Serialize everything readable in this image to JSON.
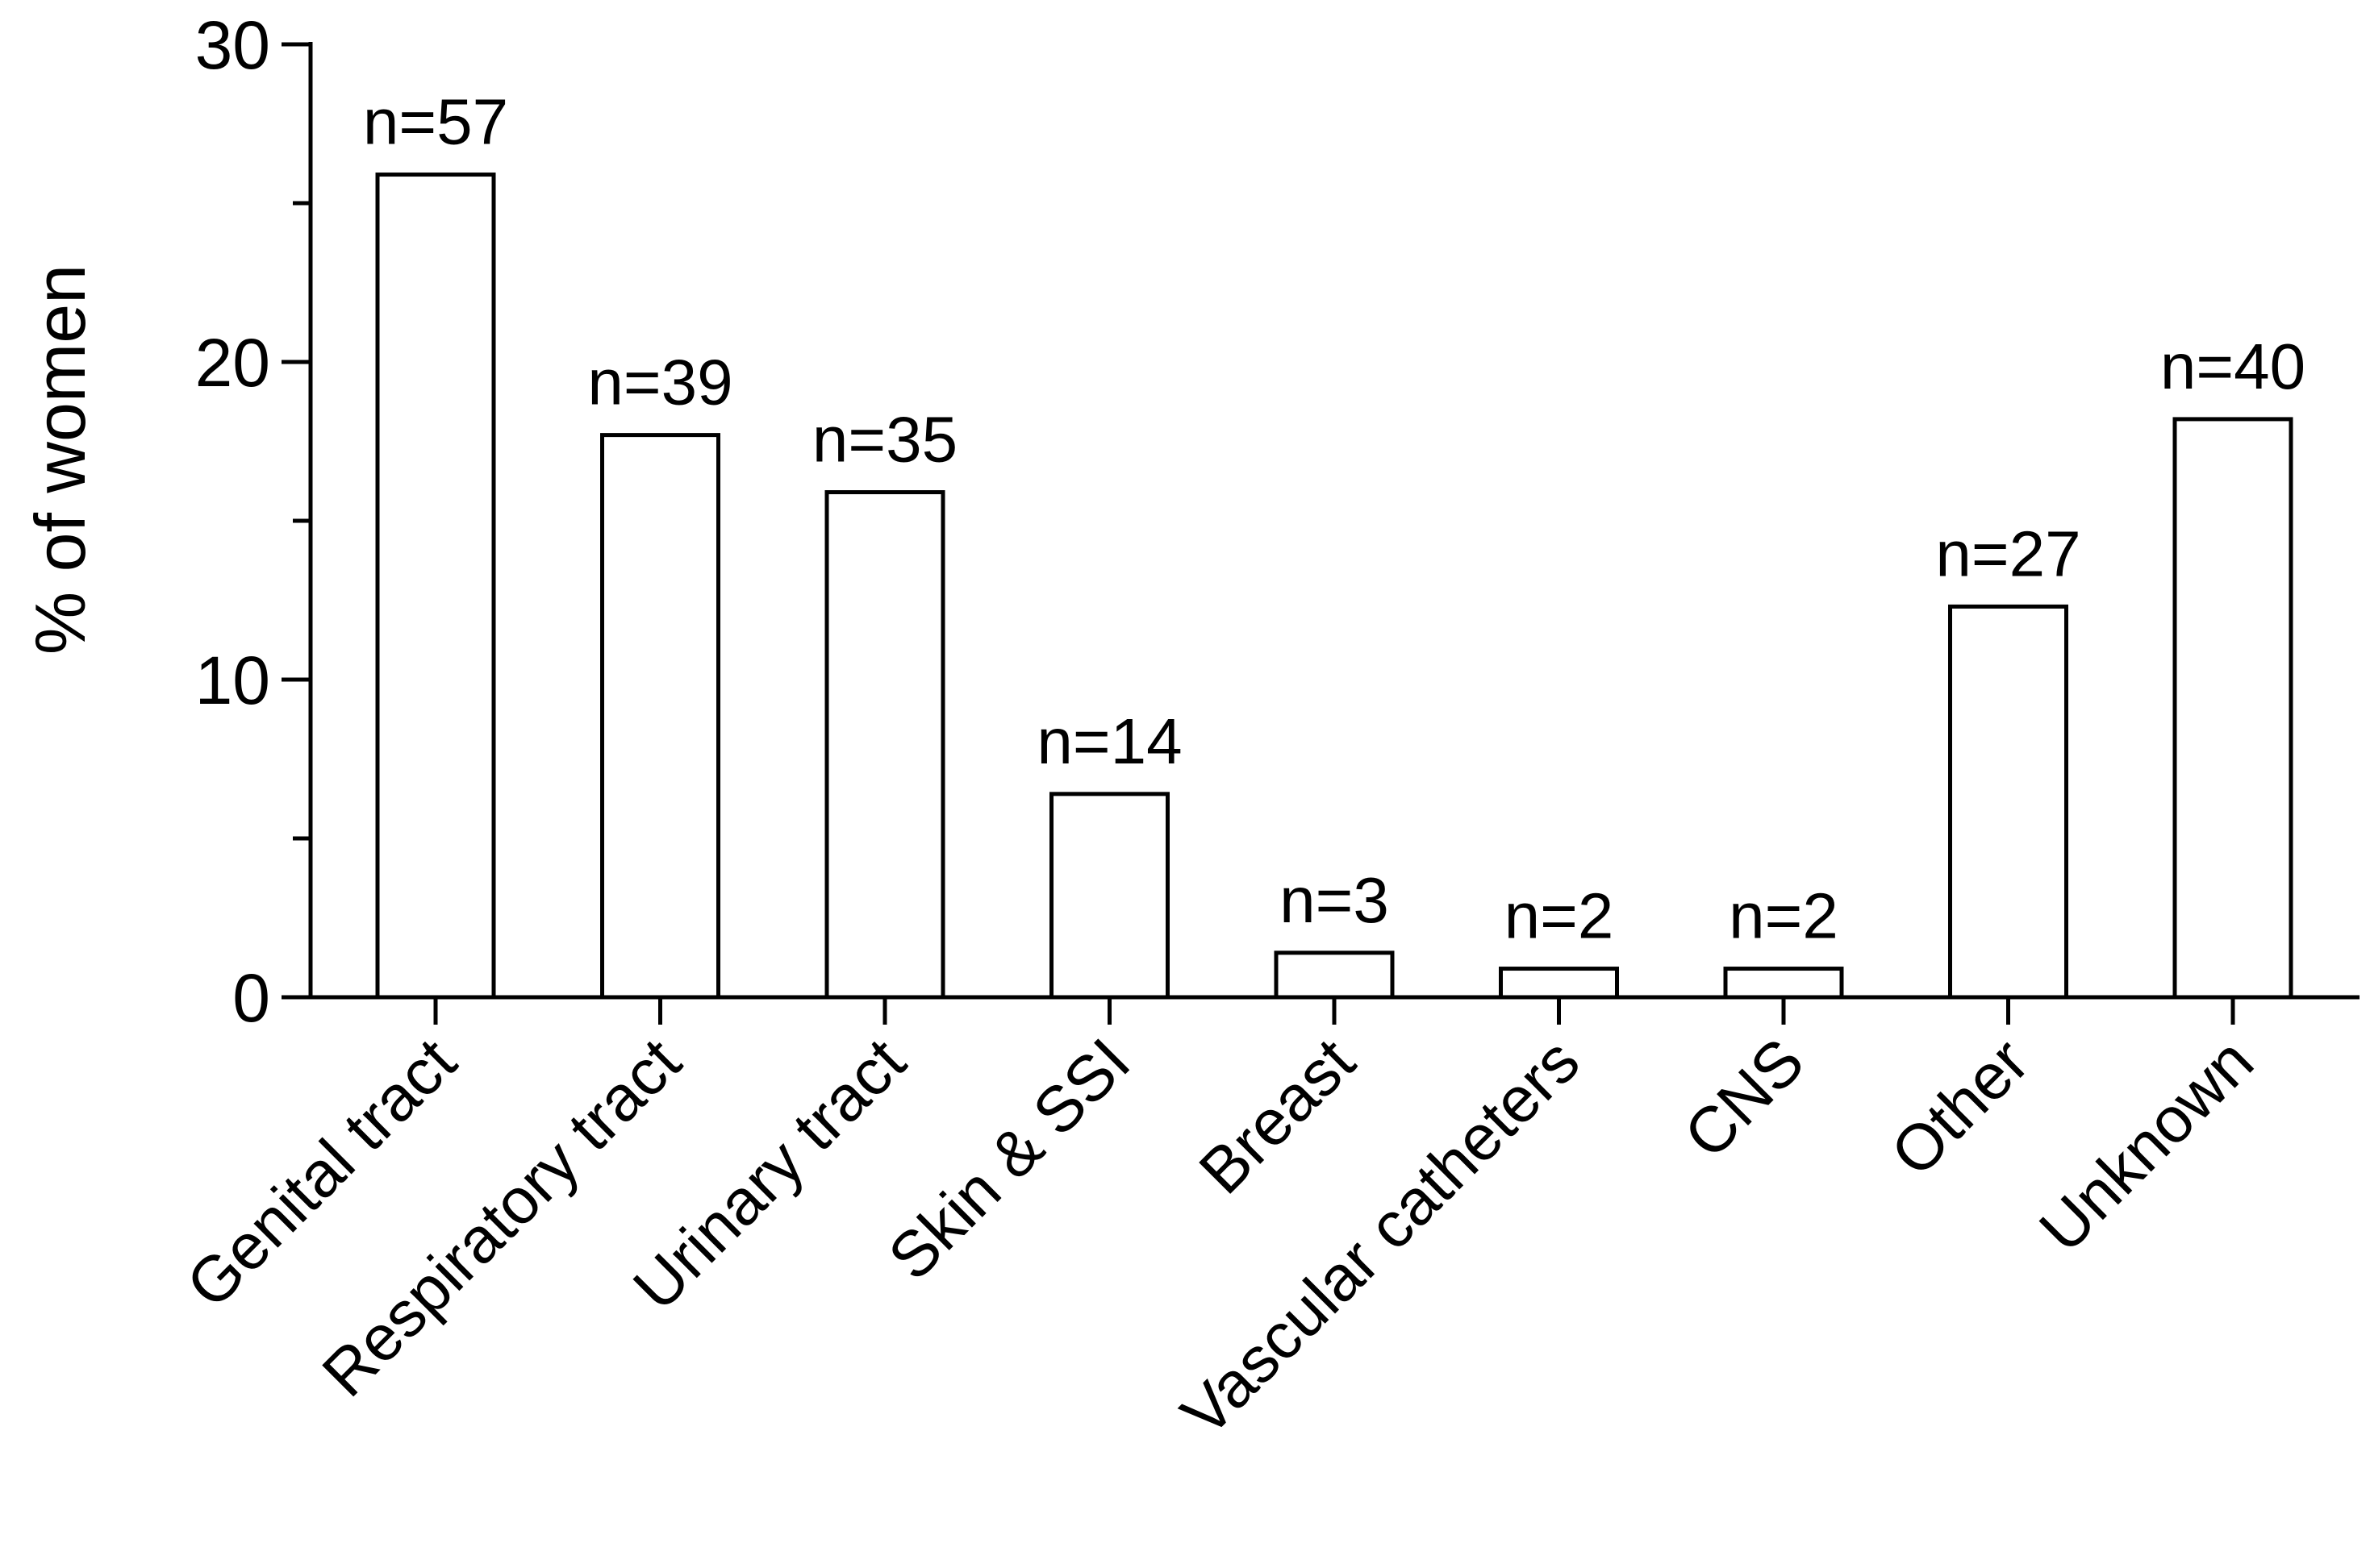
{
  "chart_data": {
    "type": "bar",
    "title": "",
    "xlabel": "",
    "ylabel": "% of women",
    "ylim": [
      0,
      30
    ],
    "yticks": [
      0,
      10,
      20,
      30
    ],
    "grid": false,
    "categories": [
      "Genital tract",
      "Respiratory tract",
      "Urinary tract",
      "Skin & SSI",
      "Breast",
      "Vascular catheters",
      "CNS",
      "Other",
      "Unknown"
    ],
    "values": [
      25.9,
      17.7,
      15.9,
      6.4,
      1.4,
      0.9,
      0.9,
      12.3,
      18.2
    ],
    "data_labels": [
      "n=57",
      "n=39",
      "n=35",
      "n=14",
      "n=3",
      "n=2",
      "n=2",
      "n=27",
      "n=40"
    ],
    "colors": {
      "bar_fill": "#ffffff",
      "bar_stroke": "#000000"
    }
  }
}
